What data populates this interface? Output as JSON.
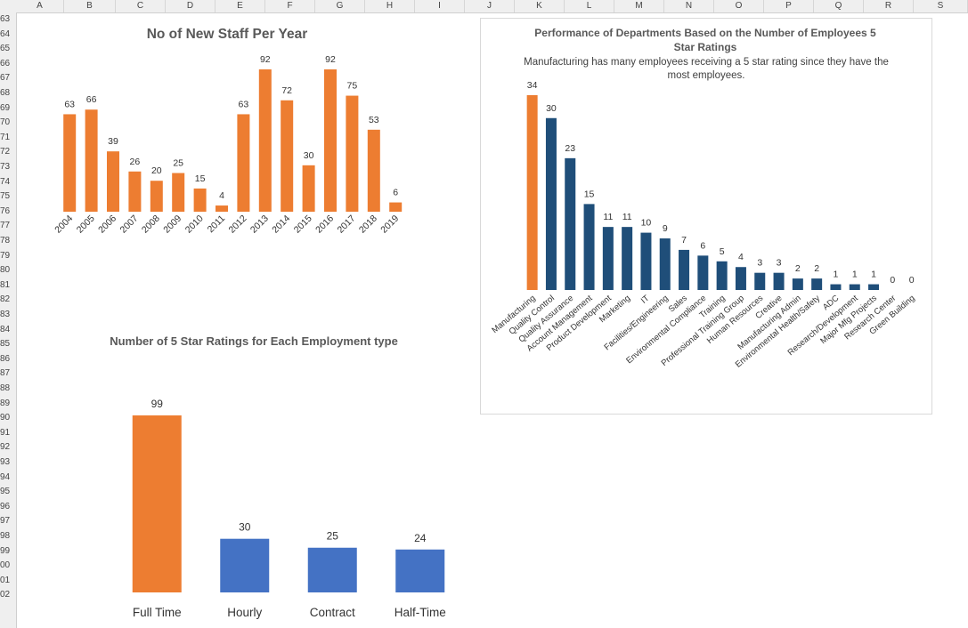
{
  "spreadsheet": {
    "columns": [
      "A",
      "B",
      "C",
      "D",
      "E",
      "F",
      "G",
      "H",
      "I",
      "J",
      "K",
      "L",
      "M",
      "N",
      "O",
      "P",
      "Q",
      "R",
      "S"
    ],
    "rows": [
      "63",
      "64",
      "65",
      "66",
      "67",
      "68",
      "69",
      "70",
      "71",
      "72",
      "73",
      "74",
      "75",
      "76",
      "77",
      "78",
      "79",
      "80",
      "81",
      "82",
      "83",
      "84",
      "85",
      "86",
      "87",
      "88",
      "89",
      "90",
      "91",
      "92",
      "93",
      "94",
      "95",
      "96",
      "97",
      "98",
      "99",
      "00",
      "01",
      "02"
    ]
  },
  "colors": {
    "orange": "#ED7D31",
    "navy": "#1F4E79",
    "blue": "#4472C4"
  },
  "chart_data": [
    {
      "type": "bar",
      "title": "No of New Staff Per Year",
      "categories": [
        "2004",
        "2005",
        "2006",
        "2007",
        "2008",
        "2009",
        "2010",
        "2011",
        "2012",
        "2013",
        "2014",
        "2015",
        "2016",
        "2017",
        "2018",
        "2019"
      ],
      "values": [
        63,
        66,
        39,
        26,
        20,
        25,
        15,
        4,
        63,
        92,
        72,
        30,
        92,
        75,
        53,
        6
      ],
      "ylim": [
        0,
        92
      ]
    },
    {
      "type": "bar",
      "title": "Performance of Departments Based on the Number of Employees 5 Star Ratings",
      "subtitle": "Manufacturing has many employees receiving a 5 star rating since they have the most employees.",
      "categories": [
        "Manufacturing",
        "Quality Control",
        "Quality Assurance",
        "Account Management",
        "Product Development",
        "Marketing",
        "IT",
        "Facilities/Engineering",
        "Sales",
        "Environmental Compliance",
        "Training",
        "Professional Training Group",
        "Human Resources",
        "Creative",
        "Manufacturing Admin",
        "Environmental Health/Safety",
        "ADC",
        "Research/Development",
        "Major Mfg Projects",
        "Research Center",
        "Green Building"
      ],
      "values": [
        34,
        30,
        23,
        15,
        11,
        11,
        10,
        9,
        7,
        6,
        5,
        4,
        3,
        3,
        2,
        2,
        1,
        1,
        1,
        0,
        0
      ],
      "ylim": [
        0,
        34
      ]
    },
    {
      "type": "bar",
      "title": "Number of 5 Star Ratings for Each Employment type",
      "categories": [
        "Full Time",
        "Hourly",
        "Contract",
        "Half-Time"
      ],
      "values": [
        99,
        30,
        25,
        24
      ],
      "ylim": [
        0,
        99
      ]
    }
  ]
}
